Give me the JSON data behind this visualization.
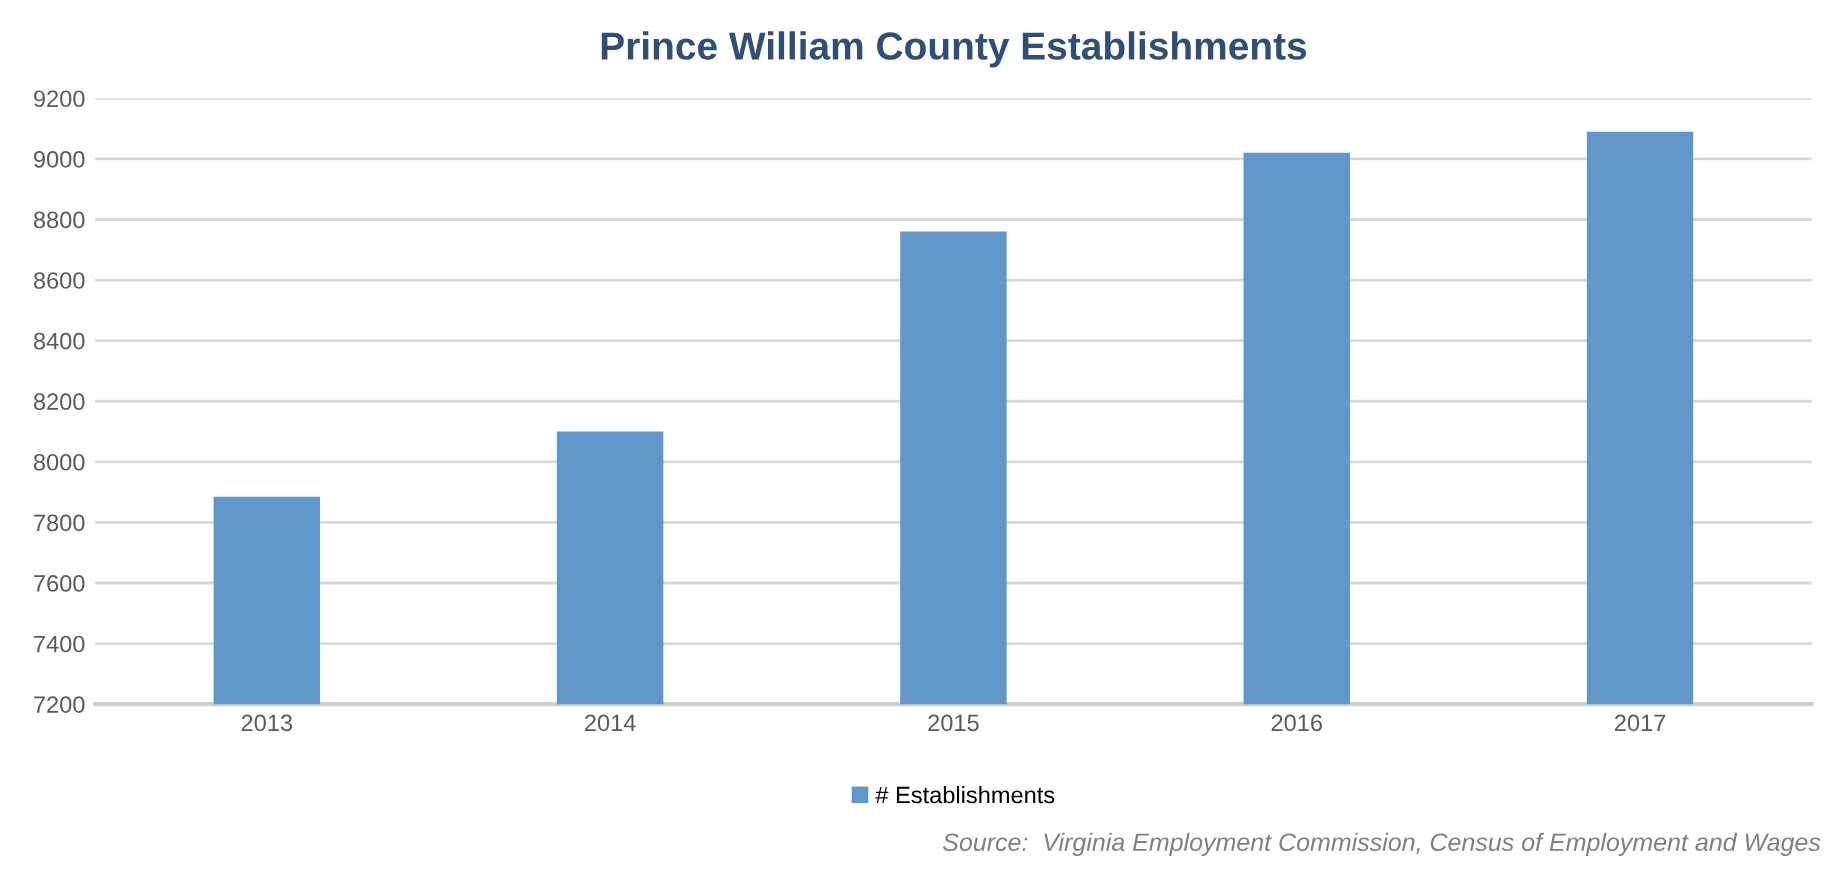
{
  "chart_data": {
    "type": "bar",
    "title": "Prince William County Establishments",
    "categories": [
      "2013",
      "2014",
      "2015",
      "2016",
      "2017"
    ],
    "series": [
      {
        "name": "# Establishments",
        "color": "#6197c9",
        "values": [
          7885,
          8100,
          8760,
          9020,
          9090
        ]
      }
    ],
    "ylim": [
      7200,
      9200
    ],
    "yticks": [
      7200,
      7400,
      7600,
      7800,
      8000,
      8200,
      8400,
      8600,
      8800,
      9000,
      9200
    ],
    "grid": "y",
    "legend": "bottom",
    "annotations": [
      "Source:  Virginia Employment Commission, Census of Employment and Wages"
    ]
  }
}
